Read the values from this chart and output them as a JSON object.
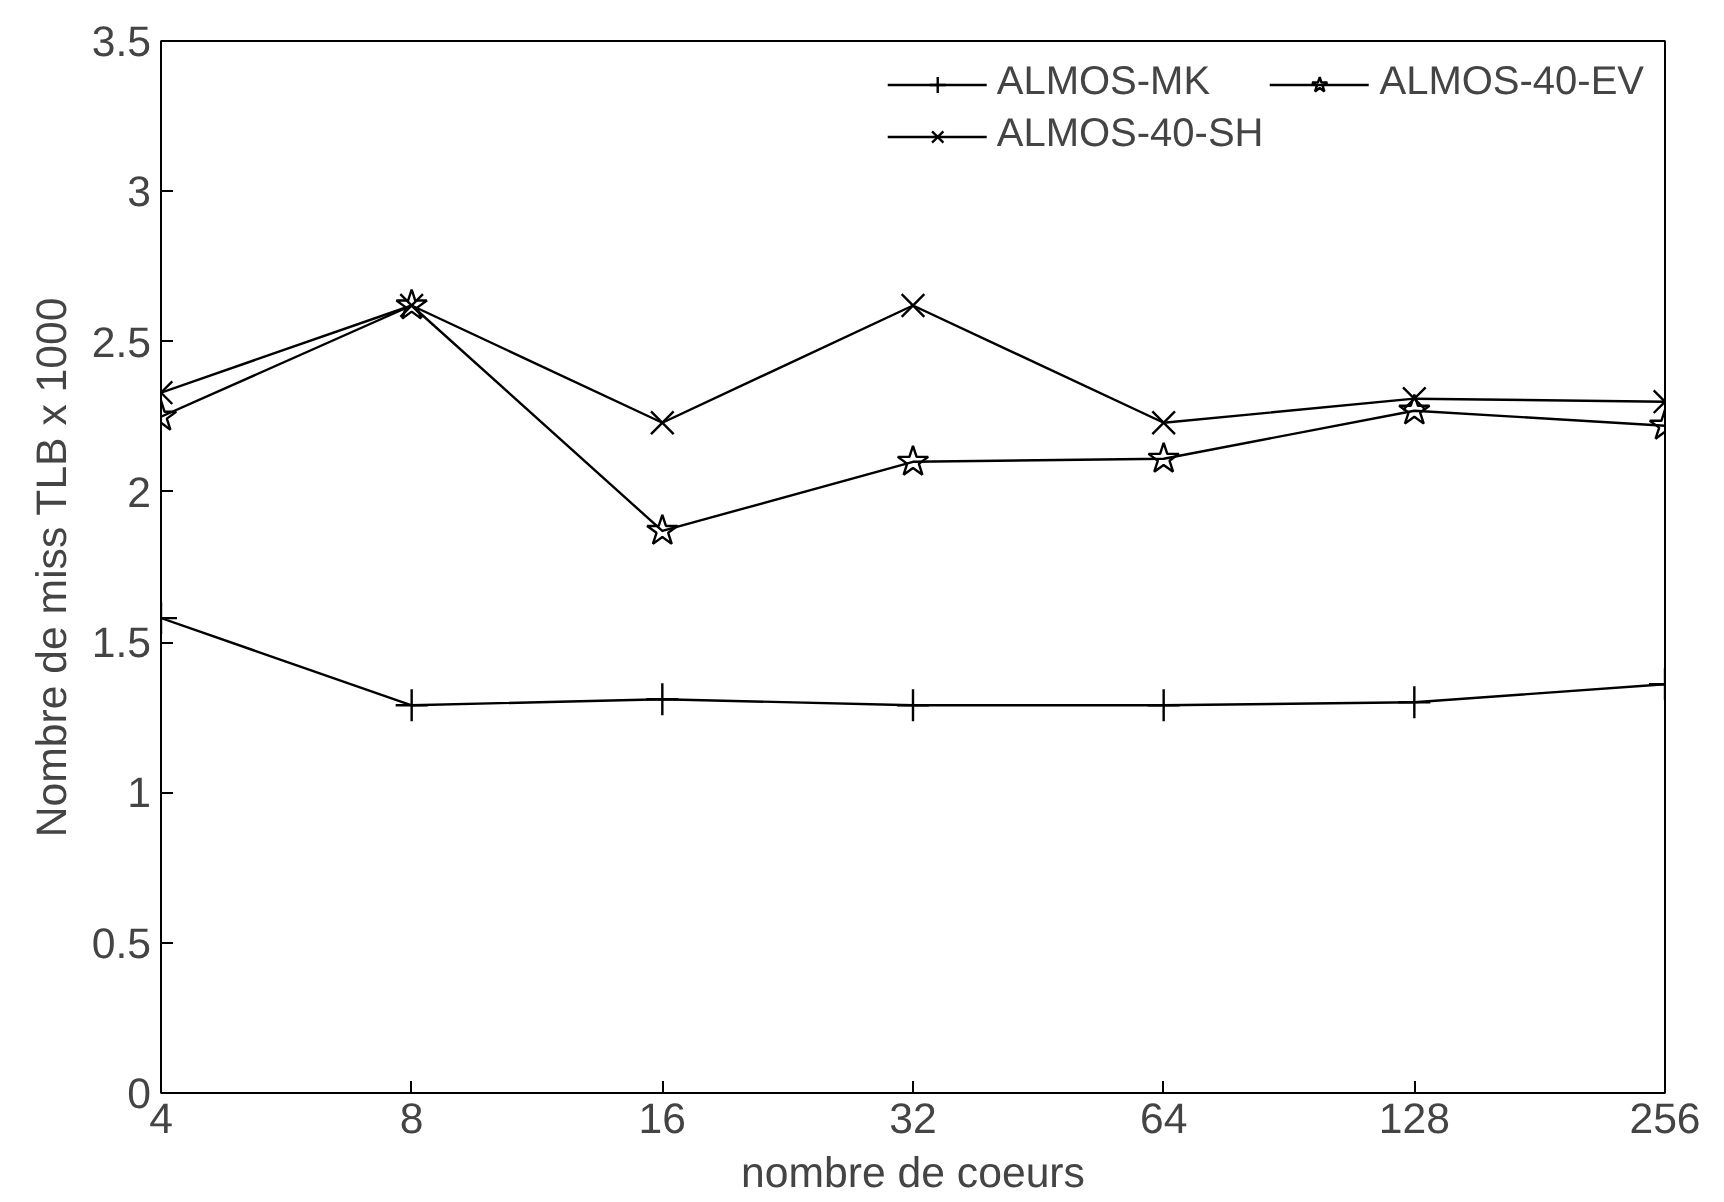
{
  "chart_data": {
    "type": "line",
    "xlabel": "nombre de coeurs",
    "ylabel": "Nombre de miss TLB x 1000",
    "x": [
      4,
      8,
      16,
      32,
      64,
      128,
      256
    ],
    "series": [
      {
        "name": "ALMOS-MK",
        "color": "#000000",
        "marker": "cross",
        "values": [
          1.58,
          1.29,
          1.31,
          1.29,
          1.29,
          1.3,
          1.36
        ]
      },
      {
        "name": "ALMOS-40-SH",
        "color": "#000000",
        "marker": "x",
        "values": [
          2.33,
          2.62,
          2.23,
          2.62,
          2.23,
          2.31,
          2.3
        ]
      },
      {
        "name": "ALMOS-40-EV",
        "color": "#000000",
        "marker": "star",
        "values": [
          2.25,
          2.62,
          1.87,
          2.1,
          2.11,
          2.27,
          2.22
        ]
      }
    ],
    "log": "x",
    "xlim": [
      4,
      256
    ],
    "xticks": [
      4,
      8,
      16,
      32,
      64,
      128,
      256
    ],
    "ylim": [
      0,
      3.5
    ],
    "yticks": [
      0,
      0.5,
      1,
      1.5,
      2,
      2.5,
      3,
      3.5
    ],
    "grid": false,
    "legend": "top right",
    "line_style": "solid"
  }
}
